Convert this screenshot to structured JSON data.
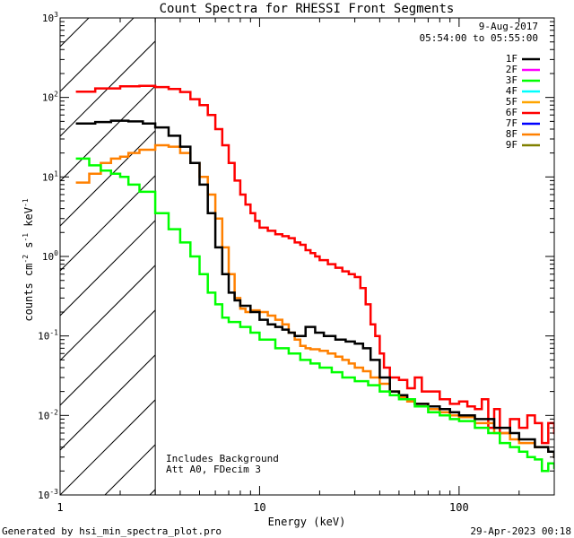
{
  "chart_data": {
    "type": "line",
    "title": "Count Spectra for RHESSI Front Segments",
    "xlabel": "Energy (keV)",
    "ylabel_parts": [
      "counts cm",
      "-2",
      " s",
      "-1",
      " keV",
      "-1"
    ],
    "x_scale": "log",
    "y_scale": "log",
    "xlim": [
      1,
      300
    ],
    "ylim": [
      0.001,
      1000
    ],
    "x_ticks": [
      {
        "value": 1,
        "label": "1"
      },
      {
        "value": 10,
        "label": "10"
      },
      {
        "value": 100,
        "label": "100"
      }
    ],
    "y_ticks": [
      {
        "value": 0.001,
        "base": "10",
        "exp": "-3"
      },
      {
        "value": 0.01,
        "base": "10",
        "exp": "-2"
      },
      {
        "value": 0.1,
        "base": "10",
        "exp": "-1"
      },
      {
        "value": 1,
        "base": "10",
        "exp": "0"
      },
      {
        "value": 10,
        "base": "10",
        "exp": "1"
      },
      {
        "value": 100,
        "base": "10",
        "exp": "2"
      },
      {
        "value": 1000,
        "base": "10",
        "exp": "3"
      }
    ],
    "attenuator_shade_max_keV": 3,
    "date": "9-Aug-2017",
    "time_range": "05:54:00 to 05:55:00",
    "notes": [
      "Includes Background",
      "Att A0, FDecim 3"
    ],
    "legend": [
      {
        "name": "1F",
        "color": "#000000"
      },
      {
        "name": "2F",
        "color": "#ff00ff"
      },
      {
        "name": "3F",
        "color": "#00ff00"
      },
      {
        "name": "4F",
        "color": "#00ffff"
      },
      {
        "name": "5F",
        "color": "#ffa500"
      },
      {
        "name": "6F",
        "color": "#ff0000"
      },
      {
        "name": "7F",
        "color": "#0000ff"
      },
      {
        "name": "8F",
        "color": "#ff8000"
      },
      {
        "name": "9F",
        "color": "#808000"
      }
    ],
    "series": [
      {
        "name": "6F",
        "color": "#ff0000",
        "points": [
          [
            1.2,
            118
          ],
          [
            1.5,
            130
          ],
          [
            2,
            138
          ],
          [
            2.5,
            140
          ],
          [
            3,
            135
          ],
          [
            3.5,
            128
          ],
          [
            4,
            117
          ],
          [
            4.5,
            95
          ],
          [
            5,
            80
          ],
          [
            5.5,
            60
          ],
          [
            6,
            40
          ],
          [
            6.5,
            25
          ],
          [
            7,
            15
          ],
          [
            7.5,
            9
          ],
          [
            8,
            6
          ],
          [
            8.5,
            4.5
          ],
          [
            9,
            3.5
          ],
          [
            9.5,
            2.8
          ],
          [
            10,
            2.3
          ],
          [
            11,
            2.1
          ],
          [
            12,
            1.9
          ],
          [
            13,
            1.8
          ],
          [
            14,
            1.7
          ],
          [
            15,
            1.5
          ],
          [
            16,
            1.4
          ],
          [
            17,
            1.2
          ],
          [
            18,
            1.1
          ],
          [
            19,
            1.0
          ],
          [
            20,
            0.9
          ],
          [
            22,
            0.8
          ],
          [
            24,
            0.72
          ],
          [
            26,
            0.65
          ],
          [
            28,
            0.6
          ],
          [
            30,
            0.55
          ],
          [
            32,
            0.4
          ],
          [
            34,
            0.25
          ],
          [
            36,
            0.14
          ],
          [
            38,
            0.1
          ],
          [
            40,
            0.06
          ],
          [
            42,
            0.04
          ],
          [
            45,
            0.03
          ],
          [
            50,
            0.028
          ],
          [
            55,
            0.022
          ],
          [
            60,
            0.03
          ],
          [
            65,
            0.02
          ],
          [
            70,
            0.02
          ],
          [
            80,
            0.016
          ],
          [
            90,
            0.014
          ],
          [
            100,
            0.015
          ],
          [
            110,
            0.013
          ],
          [
            120,
            0.012
          ],
          [
            130,
            0.016
          ],
          [
            140,
            0.007
          ],
          [
            150,
            0.012
          ],
          [
            160,
            0.006
          ],
          [
            180,
            0.009
          ],
          [
            200,
            0.007
          ],
          [
            220,
            0.01
          ],
          [
            240,
            0.008
          ],
          [
            260,
            0.0045
          ],
          [
            280,
            0.008
          ],
          [
            300,
            0.006
          ]
        ]
      },
      {
        "name": "8F",
        "color": "#ff8000",
        "points": [
          [
            1.2,
            8.5
          ],
          [
            1.4,
            11
          ],
          [
            1.6,
            15
          ],
          [
            1.8,
            17
          ],
          [
            2,
            18
          ],
          [
            2.2,
            20
          ],
          [
            2.5,
            22
          ],
          [
            3,
            25
          ],
          [
            3.5,
            24
          ],
          [
            4,
            20
          ],
          [
            4.5,
            15
          ],
          [
            5,
            10
          ],
          [
            5.5,
            6
          ],
          [
            6,
            3
          ],
          [
            6.5,
            1.3
          ],
          [
            7,
            0.6
          ],
          [
            7.5,
            0.3
          ],
          [
            8,
            0.22
          ],
          [
            8.5,
            0.2
          ],
          [
            9,
            0.21
          ],
          [
            10,
            0.2
          ],
          [
            11,
            0.18
          ],
          [
            12,
            0.16
          ],
          [
            13,
            0.14
          ],
          [
            14,
            0.11
          ],
          [
            15,
            0.09
          ],
          [
            16,
            0.075
          ],
          [
            17,
            0.07
          ],
          [
            18,
            0.068
          ],
          [
            20,
            0.065
          ],
          [
            22,
            0.06
          ],
          [
            24,
            0.055
          ],
          [
            26,
            0.05
          ],
          [
            28,
            0.045
          ],
          [
            30,
            0.04
          ],
          [
            33,
            0.036
          ],
          [
            36,
            0.03
          ],
          [
            40,
            0.025
          ],
          [
            45,
            0.02
          ],
          [
            50,
            0.017
          ],
          [
            55,
            0.015
          ],
          [
            60,
            0.014
          ],
          [
            70,
            0.012
          ],
          [
            80,
            0.011
          ],
          [
            90,
            0.01
          ],
          [
            100,
            0.0095
          ],
          [
            120,
            0.008
          ],
          [
            150,
            0.006
          ],
          [
            180,
            0.005
          ],
          [
            200,
            0.0045
          ],
          [
            240,
            0.004
          ],
          [
            280,
            0.0035
          ],
          [
            300,
            0.003
          ]
        ]
      },
      {
        "name": "1F",
        "color": "#000000",
        "points": [
          [
            1.2,
            47
          ],
          [
            1.5,
            49
          ],
          [
            1.8,
            51
          ],
          [
            2.2,
            50
          ],
          [
            2.6,
            47
          ],
          [
            3,
            42
          ],
          [
            3.5,
            33
          ],
          [
            4,
            24
          ],
          [
            4.5,
            15
          ],
          [
            5,
            8
          ],
          [
            5.5,
            3.5
          ],
          [
            6,
            1.3
          ],
          [
            6.5,
            0.6
          ],
          [
            7,
            0.35
          ],
          [
            7.5,
            0.28
          ],
          [
            8,
            0.24
          ],
          [
            9,
            0.2
          ],
          [
            10,
            0.16
          ],
          [
            11,
            0.14
          ],
          [
            12,
            0.13
          ],
          [
            13,
            0.12
          ],
          [
            14,
            0.11
          ],
          [
            15,
            0.1
          ],
          [
            17,
            0.13
          ],
          [
            19,
            0.11
          ],
          [
            21,
            0.1
          ],
          [
            24,
            0.09
          ],
          [
            27,
            0.085
          ],
          [
            30,
            0.08
          ],
          [
            33,
            0.07
          ],
          [
            36,
            0.05
          ],
          [
            40,
            0.03
          ],
          [
            45,
            0.02
          ],
          [
            50,
            0.018
          ],
          [
            55,
            0.016
          ],
          [
            60,
            0.014
          ],
          [
            70,
            0.013
          ],
          [
            80,
            0.012
          ],
          [
            90,
            0.011
          ],
          [
            100,
            0.01
          ],
          [
            120,
            0.009
          ],
          [
            150,
            0.007
          ],
          [
            180,
            0.006
          ],
          [
            200,
            0.005
          ],
          [
            240,
            0.004
          ],
          [
            280,
            0.0035
          ],
          [
            300,
            0.003
          ]
        ]
      },
      {
        "name": "3F",
        "color": "#00ff00",
        "points": [
          [
            1.2,
            17
          ],
          [
            1.4,
            14
          ],
          [
            1.6,
            12
          ],
          [
            1.8,
            11
          ],
          [
            2,
            10
          ],
          [
            2.2,
            8
          ],
          [
            2.5,
            6.5
          ],
          [
            3,
            3.5
          ],
          [
            3.5,
            2.2
          ],
          [
            4,
            1.5
          ],
          [
            4.5,
            1.0
          ],
          [
            5,
            0.6
          ],
          [
            5.5,
            0.35
          ],
          [
            6,
            0.25
          ],
          [
            6.5,
            0.17
          ],
          [
            7,
            0.15
          ],
          [
            8,
            0.13
          ],
          [
            9,
            0.11
          ],
          [
            10,
            0.09
          ],
          [
            12,
            0.07
          ],
          [
            14,
            0.06
          ],
          [
            16,
            0.05
          ],
          [
            18,
            0.045
          ],
          [
            20,
            0.04
          ],
          [
            23,
            0.035
          ],
          [
            26,
            0.03
          ],
          [
            30,
            0.027
          ],
          [
            35,
            0.024
          ],
          [
            40,
            0.02
          ],
          [
            45,
            0.018
          ],
          [
            50,
            0.016
          ],
          [
            60,
            0.013
          ],
          [
            70,
            0.011
          ],
          [
            80,
            0.01
          ],
          [
            90,
            0.009
          ],
          [
            100,
            0.0085
          ],
          [
            120,
            0.007
          ],
          [
            140,
            0.006
          ],
          [
            160,
            0.0045
          ],
          [
            180,
            0.004
          ],
          [
            200,
            0.0035
          ],
          [
            220,
            0.003
          ],
          [
            240,
            0.0028
          ],
          [
            260,
            0.002
          ],
          [
            280,
            0.0025
          ],
          [
            300,
            0.0022
          ]
        ]
      }
    ]
  },
  "footer": {
    "left": "Generated by hsi_min_spectra_plot.pro",
    "right": "29-Apr-2023 00:18"
  }
}
